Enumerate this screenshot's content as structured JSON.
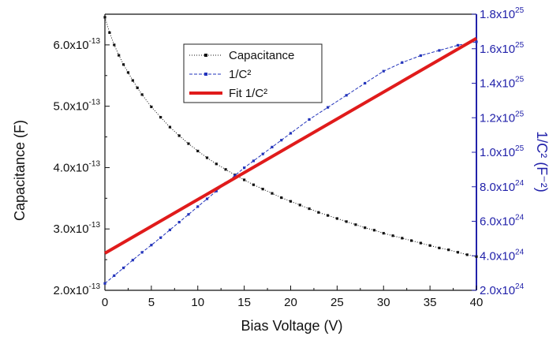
{
  "chart_data": {
    "type": "line",
    "title": "",
    "xlabel": "Bias Voltage (V)",
    "ylabel_left": "Capacitance (F)",
    "ylabel_right": "1/C² (F⁻²)",
    "xlim": [
      0,
      40
    ],
    "ylim_left": [
      2e-13,
      6.5e-13
    ],
    "ylim_right": [
      2e+24,
      1.8e+25
    ],
    "grid": false,
    "legend_position": "top-left",
    "x_ticks": [
      {
        "value": 0,
        "label": "0"
      },
      {
        "value": 5,
        "label": "5"
      },
      {
        "value": 10,
        "label": "10"
      },
      {
        "value": 15,
        "label": "15"
      },
      {
        "value": 20,
        "label": "20"
      },
      {
        "value": 25,
        "label": "25"
      },
      {
        "value": 30,
        "label": "30"
      },
      {
        "value": 35,
        "label": "35"
      },
      {
        "value": 40,
        "label": "40"
      }
    ],
    "y_left_ticks": [
      {
        "value": 2e-13,
        "mant": "2.0x10",
        "exp": "-13"
      },
      {
        "value": 3e-13,
        "mant": "3.0x10",
        "exp": "-13"
      },
      {
        "value": 4e-13,
        "mant": "4.0x10",
        "exp": "-13"
      },
      {
        "value": 5e-13,
        "mant": "5.0x10",
        "exp": "-13"
      },
      {
        "value": 6e-13,
        "mant": "6.0x10",
        "exp": "-13"
      }
    ],
    "y_right_ticks": [
      {
        "value": 2e+24,
        "mant": "2.0x10",
        "exp": "24"
      },
      {
        "value": 4e+24,
        "mant": "4.0x10",
        "exp": "24"
      },
      {
        "value": 6e+24,
        "mant": "6.0x10",
        "exp": "24"
      },
      {
        "value": 8e+24,
        "mant": "8.0x10",
        "exp": "24"
      },
      {
        "value": 1e+25,
        "mant": "1.0x10",
        "exp": "25"
      },
      {
        "value": 1.2e+25,
        "mant": "1.2x10",
        "exp": "25"
      },
      {
        "value": 1.4e+25,
        "mant": "1.4x10",
        "exp": "25"
      },
      {
        "value": 1.6e+25,
        "mant": "1.6x10",
        "exp": "25"
      },
      {
        "value": 1.8e+25,
        "mant": "1.8x10",
        "exp": "25"
      }
    ],
    "series": [
      {
        "name": "Capacitance",
        "axis": "left",
        "color": "#111111",
        "style": "dotted-squares",
        "x": [
          0,
          0.5,
          1,
          1.5,
          2,
          2.5,
          3,
          3.5,
          4,
          5,
          6,
          7,
          8,
          9,
          10,
          11,
          12,
          13,
          14,
          15,
          16,
          17,
          18,
          19,
          20,
          21,
          22,
          23,
          24,
          25,
          26,
          27,
          28,
          29,
          30,
          31,
          32,
          33,
          34,
          35,
          36,
          37,
          38,
          39,
          40
        ],
        "y": [
          6.45e-13,
          6.2e-13,
          6e-13,
          5.83e-13,
          5.68e-13,
          5.55e-13,
          5.42e-13,
          5.3e-13,
          5.19e-13,
          4.99e-13,
          4.82e-13,
          4.66e-13,
          4.52e-13,
          4.39e-13,
          4.27e-13,
          4.16e-13,
          4.06e-13,
          3.97e-13,
          3.88e-13,
          3.8e-13,
          3.72e-13,
          3.65e-13,
          3.58e-13,
          3.51e-13,
          3.45e-13,
          3.39e-13,
          3.33e-13,
          3.27e-13,
          3.22e-13,
          3.17e-13,
          3.12e-13,
          3.07e-13,
          3.02e-13,
          2.98e-13,
          2.93e-13,
          2.89e-13,
          2.85e-13,
          2.81e-13,
          2.77e-13,
          2.73e-13,
          2.69e-13,
          2.66e-13,
          2.62e-13,
          2.58e-13,
          2.55e-13
        ]
      },
      {
        "name": "1/C²",
        "axis": "right",
        "color": "#2233bb",
        "style": "dashed-squares",
        "x": [
          0,
          1,
          2,
          3,
          4,
          5,
          6,
          7,
          8,
          9,
          10,
          11,
          12,
          13,
          14,
          15,
          16,
          17,
          18,
          19,
          20,
          22,
          24,
          26,
          28,
          30,
          32,
          34,
          36,
          38,
          40
        ],
        "y": [
          2.4e+24,
          2.85e+24,
          3.3e+24,
          3.75e+24,
          4.2e+24,
          4.62e+24,
          5.05e+24,
          5.5e+24,
          5.95e+24,
          6.4e+24,
          6.85e+24,
          7.3e+24,
          7.75e+24,
          8.2e+24,
          8.65e+24,
          9.1e+24,
          9.5e+24,
          9.9e+24,
          1.03e+25,
          1.07e+25,
          1.11e+25,
          1.19e+25,
          1.26e+25,
          1.33e+25,
          1.4e+25,
          1.47e+25,
          1.52e+25,
          1.56e+25,
          1.59e+25,
          1.62e+25,
          1.64e+25
        ]
      },
      {
        "name": "Fit 1/C²",
        "axis": "right",
        "color": "#e01b1b",
        "style": "solid-thick",
        "x": [
          0,
          40
        ],
        "y": [
          4.15e+24,
          1.66e+25
        ]
      }
    ]
  }
}
